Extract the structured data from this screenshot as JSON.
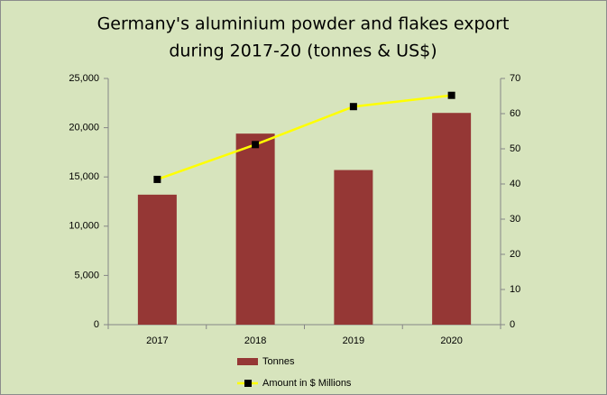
{
  "chart_data": {
    "type": "bar",
    "title": [
      "Germany's aluminium  powder and flakes export",
      "during 2017-20 (tonnes & US$)"
    ],
    "categories": [
      "2017",
      "2018",
      "2019",
      "2020"
    ],
    "series": [
      {
        "name": "Tonnes",
        "type": "bar",
        "color": "#953735",
        "values": [
          13200,
          19400,
          15700,
          21500
        ]
      },
      {
        "name": "Amount in $ Millions",
        "type": "line",
        "axis": "y2",
        "color": "#ffff00",
        "marker_color": "#000000",
        "values": [
          41.3,
          51.2,
          62,
          65.2
        ]
      }
    ],
    "ylim": [
      0,
      25000
    ],
    "yticks": [
      0,
      {
        "value": 5000,
        "label": "5,000"
      },
      {
        "value": 10000,
        "label": "10,000"
      },
      {
        "value": 15000,
        "label": "15,000"
      },
      {
        "value": 20000,
        "label": "20,000"
      },
      {
        "value": 25000,
        "label": "25,000"
      }
    ],
    "y2lim": [
      0,
      70
    ],
    "y2ticks": [
      0,
      10,
      20,
      30,
      40,
      50,
      60,
      70
    ],
    "grid": false,
    "legend": "bottom"
  }
}
